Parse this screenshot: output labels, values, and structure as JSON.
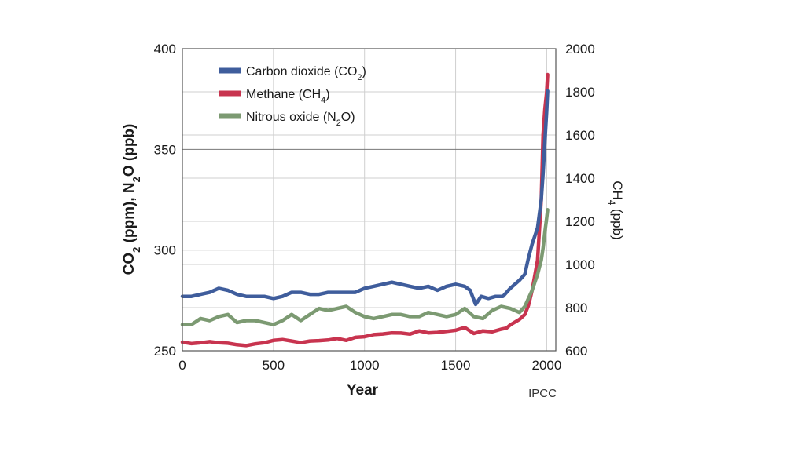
{
  "chart_data": {
    "type": "line",
    "title": "",
    "xlabel": "Year",
    "ylabel_left_parts": [
      "CO",
      "2",
      " (ppm), N",
      "2",
      "O (ppb)"
    ],
    "ylabel_right_parts": [
      "CH",
      "4",
      " (ppb)"
    ],
    "xlim": [
      0,
      2050
    ],
    "ylim_left": [
      250,
      400
    ],
    "ylim_right": [
      600,
      2000
    ],
    "x_ticks": [
      0,
      500,
      1000,
      1500,
      2000
    ],
    "y_left_ticks": [
      250,
      300,
      350,
      400
    ],
    "y_right_ticks": [
      600,
      800,
      1000,
      1200,
      1400,
      1600,
      1800,
      2000
    ],
    "source_label": "IPCC",
    "legend_position": "top-left",
    "grid": true,
    "series": [
      {
        "key": "co2",
        "name_parts": [
          "Carbon dioxide (CO",
          "2",
          ")"
        ],
        "axis": "left",
        "color": "#3f5d9c",
        "points": [
          [
            0,
            277
          ],
          [
            50,
            277
          ],
          [
            100,
            278
          ],
          [
            150,
            279
          ],
          [
            200,
            281
          ],
          [
            250,
            280
          ],
          [
            300,
            278
          ],
          [
            350,
            277
          ],
          [
            400,
            277
          ],
          [
            450,
            277
          ],
          [
            500,
            276
          ],
          [
            550,
            277
          ],
          [
            600,
            279
          ],
          [
            650,
            279
          ],
          [
            700,
            278
          ],
          [
            750,
            278
          ],
          [
            800,
            279
          ],
          [
            850,
            279
          ],
          [
            900,
            279
          ],
          [
            950,
            279
          ],
          [
            1000,
            281
          ],
          [
            1050,
            282
          ],
          [
            1100,
            283
          ],
          [
            1150,
            284
          ],
          [
            1200,
            283
          ],
          [
            1250,
            282
          ],
          [
            1300,
            281
          ],
          [
            1350,
            282
          ],
          [
            1400,
            280
          ],
          [
            1450,
            282
          ],
          [
            1500,
            283
          ],
          [
            1550,
            282
          ],
          [
            1580,
            280
          ],
          [
            1610,
            273
          ],
          [
            1640,
            277
          ],
          [
            1680,
            276
          ],
          [
            1720,
            277
          ],
          [
            1760,
            277
          ],
          [
            1800,
            281
          ],
          [
            1850,
            285
          ],
          [
            1880,
            288
          ],
          [
            1900,
            296
          ],
          [
            1920,
            303
          ],
          [
            1950,
            311
          ],
          [
            1970,
            325
          ],
          [
            1980,
            338
          ],
          [
            1990,
            354
          ],
          [
            2000,
            369
          ],
          [
            2005,
            379
          ]
        ]
      },
      {
        "key": "ch4",
        "name_parts": [
          "Methane (CH",
          "4",
          ")"
        ],
        "axis": "right",
        "color": "#c8344f",
        "points": [
          [
            0,
            640
          ],
          [
            50,
            633
          ],
          [
            100,
            637
          ],
          [
            150,
            642
          ],
          [
            200,
            637
          ],
          [
            250,
            635
          ],
          [
            300,
            628
          ],
          [
            350,
            624
          ],
          [
            400,
            632
          ],
          [
            450,
            637
          ],
          [
            500,
            648
          ],
          [
            550,
            652
          ],
          [
            600,
            645
          ],
          [
            650,
            638
          ],
          [
            700,
            645
          ],
          [
            750,
            647
          ],
          [
            800,
            650
          ],
          [
            850,
            657
          ],
          [
            900,
            648
          ],
          [
            950,
            662
          ],
          [
            1000,
            665
          ],
          [
            1050,
            675
          ],
          [
            1100,
            678
          ],
          [
            1150,
            683
          ],
          [
            1200,
            682
          ],
          [
            1250,
            677
          ],
          [
            1300,
            692
          ],
          [
            1350,
            683
          ],
          [
            1400,
            685
          ],
          [
            1450,
            690
          ],
          [
            1500,
            695
          ],
          [
            1550,
            708
          ],
          [
            1600,
            680
          ],
          [
            1650,
            692
          ],
          [
            1700,
            688
          ],
          [
            1750,
            700
          ],
          [
            1780,
            705
          ],
          [
            1800,
            720
          ],
          [
            1850,
            745
          ],
          [
            1880,
            768
          ],
          [
            1900,
            810
          ],
          [
            1920,
            880
          ],
          [
            1950,
            1020
          ],
          [
            1970,
            1300
          ],
          [
            1980,
            1600
          ],
          [
            1990,
            1720
          ],
          [
            2000,
            1800
          ],
          [
            2005,
            1880
          ]
        ]
      },
      {
        "key": "n2o",
        "name_parts": [
          "Nitrous oxide (N",
          "2",
          "O)"
        ],
        "axis": "left",
        "color": "#7c9a72",
        "points": [
          [
            0,
            263
          ],
          [
            50,
            263
          ],
          [
            100,
            266
          ],
          [
            150,
            265
          ],
          [
            200,
            267
          ],
          [
            250,
            268
          ],
          [
            300,
            264
          ],
          [
            350,
            265
          ],
          [
            400,
            265
          ],
          [
            450,
            264
          ],
          [
            500,
            263
          ],
          [
            550,
            265
          ],
          [
            600,
            268
          ],
          [
            650,
            265
          ],
          [
            700,
            268
          ],
          [
            750,
            271
          ],
          [
            800,
            270
          ],
          [
            850,
            271
          ],
          [
            900,
            272
          ],
          [
            950,
            269
          ],
          [
            1000,
            267
          ],
          [
            1050,
            266
          ],
          [
            1100,
            267
          ],
          [
            1150,
            268
          ],
          [
            1200,
            268
          ],
          [
            1250,
            267
          ],
          [
            1300,
            267
          ],
          [
            1350,
            269
          ],
          [
            1400,
            268
          ],
          [
            1450,
            267
          ],
          [
            1500,
            268
          ],
          [
            1550,
            271
          ],
          [
            1600,
            267
          ],
          [
            1650,
            266
          ],
          [
            1700,
            270
          ],
          [
            1750,
            272
          ],
          [
            1800,
            271
          ],
          [
            1850,
            269
          ],
          [
            1880,
            272
          ],
          [
            1900,
            276
          ],
          [
            1920,
            280
          ],
          [
            1950,
            288
          ],
          [
            1970,
            295
          ],
          [
            1980,
            301
          ],
          [
            1990,
            309
          ],
          [
            2000,
            316
          ],
          [
            2005,
            320
          ]
        ]
      }
    ]
  }
}
